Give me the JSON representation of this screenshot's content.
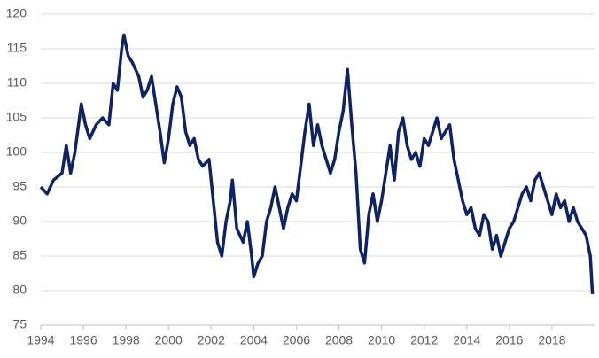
{
  "chart_data": {
    "type": "line",
    "x": [
      1994.0,
      1994.3,
      1994.6,
      1995.0,
      1995.2,
      1995.4,
      1995.6,
      1995.9,
      1996.1,
      1996.3,
      1996.6,
      1996.9,
      1997.2,
      1997.4,
      1997.6,
      1997.8,
      1997.9,
      1998.1,
      1998.3,
      1998.6,
      1998.8,
      1999.0,
      1999.2,
      1999.4,
      1999.6,
      1999.8,
      2000.0,
      2000.2,
      2000.4,
      2000.6,
      2000.8,
      2001.0,
      2001.2,
      2001.4,
      2001.6,
      2001.9,
      2002.1,
      2002.3,
      2002.5,
      2002.7,
      2002.9,
      2003.0,
      2003.2,
      2003.5,
      2003.7,
      2003.9,
      2004.0,
      2004.2,
      2004.4,
      2004.6,
      2004.8,
      2005.0,
      2005.2,
      2005.4,
      2005.6,
      2005.8,
      2006.0,
      2006.2,
      2006.4,
      2006.6,
      2006.8,
      2007.0,
      2007.2,
      2007.4,
      2007.6,
      2007.8,
      2008.0,
      2008.2,
      2008.4,
      2008.6,
      2008.8,
      2009.0,
      2009.2,
      2009.4,
      2009.6,
      2009.8,
      2010.0,
      2010.2,
      2010.4,
      2010.6,
      2010.8,
      2011.0,
      2011.2,
      2011.4,
      2011.6,
      2011.8,
      2012.0,
      2012.2,
      2012.4,
      2012.6,
      2012.8,
      2013.0,
      2013.2,
      2013.4,
      2013.6,
      2013.8,
      2014.0,
      2014.2,
      2014.4,
      2014.6,
      2014.8,
      2015.0,
      2015.2,
      2015.4,
      2015.6,
      2015.8,
      2016.0,
      2016.2,
      2016.4,
      2016.6,
      2016.8,
      2017.0,
      2017.2,
      2017.4,
      2017.6,
      2017.8,
      2018.0,
      2018.2,
      2018.4,
      2018.6,
      2018.8,
      2019.0,
      2019.2,
      2019.4,
      2019.6,
      2019.8,
      2019.9
    ],
    "series": [
      {
        "color": "#0d2363",
        "values": [
          95,
          94,
          96,
          97,
          101,
          97,
          100,
          107,
          104,
          102,
          104,
          105,
          104,
          110,
          109,
          115,
          117,
          114,
          113,
          111,
          108,
          109,
          111,
          107,
          103,
          98.5,
          102,
          107,
          109.5,
          108,
          103,
          101,
          102,
          99,
          98,
          99,
          93,
          87,
          85,
          90,
          93,
          96,
          89,
          87,
          90,
          85,
          82,
          84,
          85,
          90,
          92,
          95,
          92,
          89,
          92,
          94,
          93,
          98,
          103,
          107,
          101,
          104,
          101,
          99,
          97,
          99,
          103,
          106,
          112,
          104,
          97,
          86,
          84,
          91,
          94,
          90,
          93,
          97,
          101,
          96,
          103,
          105,
          101,
          99,
          100,
          98,
          102,
          101,
          103,
          105,
          102,
          103,
          104,
          99,
          96,
          93,
          91,
          92,
          89,
          88,
          91,
          90,
          86,
          88,
          85,
          87,
          89,
          90,
          92,
          94,
          95,
          93,
          96,
          97,
          95,
          93,
          91,
          94,
          92,
          93,
          90,
          92,
          90,
          89,
          88,
          85,
          79.5
        ]
      }
    ],
    "xlim": [
      1994,
      2020
    ],
    "xticks": [
      1994,
      1996,
      1998,
      2000,
      2002,
      2004,
      2006,
      2008,
      2010,
      2012,
      2014,
      2016,
      2018
    ],
    "ylim": [
      75,
      120
    ],
    "yticks": [
      75,
      80,
      85,
      90,
      95,
      100,
      105,
      110,
      115,
      120
    ],
    "grid": true
  }
}
